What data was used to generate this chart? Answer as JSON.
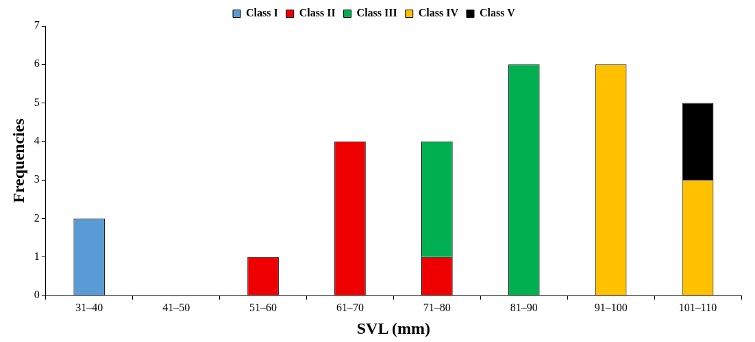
{
  "chart_data": {
    "type": "bar",
    "stacked": true,
    "xlabel": "SVL (mm)",
    "ylabel": "Frequencies",
    "categories": [
      "31–40",
      "41–50",
      "51–60",
      "61–70",
      "71–80",
      "81–90",
      "91–100",
      "101–110"
    ],
    "series": [
      {
        "name": "Class I",
        "color": "#5b9bd5",
        "values": [
          2,
          null,
          null,
          null,
          null,
          null,
          null,
          null
        ]
      },
      {
        "name": "Class II",
        "color": "#ee0000",
        "values": [
          null,
          null,
          1,
          4,
          1,
          null,
          null,
          null
        ]
      },
      {
        "name": "Class III",
        "color": "#00b050",
        "values": [
          null,
          null,
          null,
          null,
          3,
          6,
          null,
          null
        ]
      },
      {
        "name": "Class IV",
        "color": "#ffc000",
        "values": [
          null,
          null,
          null,
          null,
          null,
          null,
          6,
          3
        ]
      },
      {
        "name": "Class V",
        "color": "#000000",
        "values": [
          null,
          null,
          null,
          null,
          null,
          null,
          null,
          2
        ]
      }
    ],
    "ylim": [
      0,
      7
    ],
    "yticks": [
      0,
      1,
      2,
      3,
      4,
      5,
      6,
      7
    ],
    "grid": false,
    "legend": "top"
  }
}
